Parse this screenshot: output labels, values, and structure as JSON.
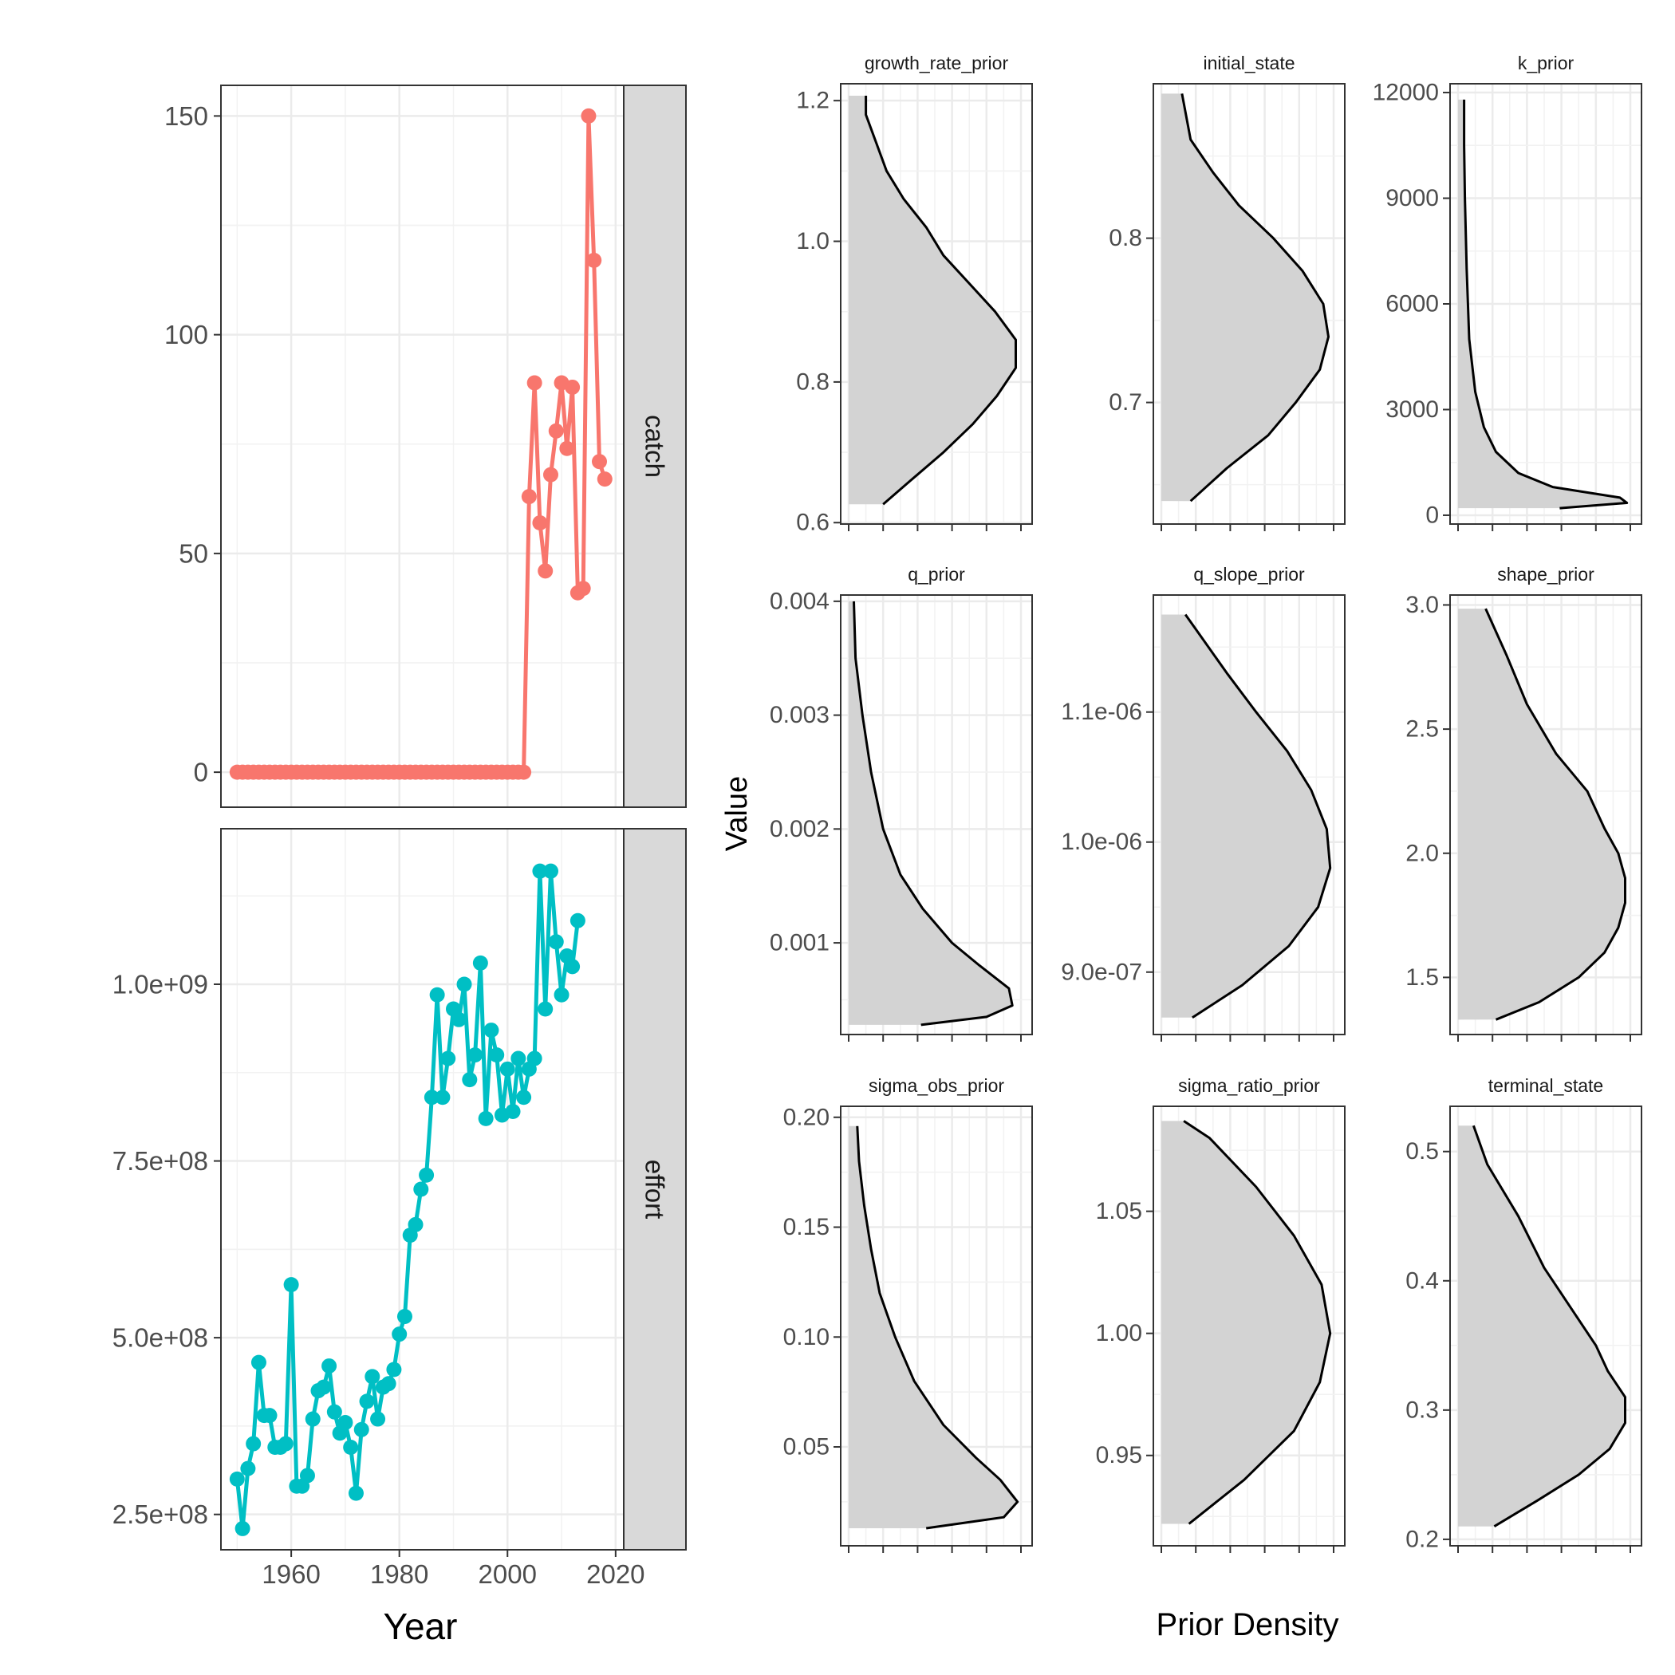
{
  "chart_data": [
    {
      "type": "line",
      "facet": "catch",
      "color": "#F8766D",
      "points": [
        [
          1950,
          0
        ],
        [
          1951,
          0
        ],
        [
          1952,
          0
        ],
        [
          1953,
          0
        ],
        [
          1954,
          0
        ],
        [
          1955,
          0
        ],
        [
          1956,
          0
        ],
        [
          1957,
          0
        ],
        [
          1958,
          0
        ],
        [
          1959,
          0
        ],
        [
          1960,
          0
        ],
        [
          1961,
          0
        ],
        [
          1962,
          0
        ],
        [
          1963,
          0
        ],
        [
          1964,
          0
        ],
        [
          1965,
          0
        ],
        [
          1966,
          0
        ],
        [
          1967,
          0
        ],
        [
          1968,
          0
        ],
        [
          1969,
          0
        ],
        [
          1970,
          0
        ],
        [
          1971,
          0
        ],
        [
          1972,
          0
        ],
        [
          1973,
          0
        ],
        [
          1974,
          0
        ],
        [
          1975,
          0
        ],
        [
          1976,
          0
        ],
        [
          1977,
          0
        ],
        [
          1978,
          0
        ],
        [
          1979,
          0
        ],
        [
          1980,
          0
        ],
        [
          1981,
          0
        ],
        [
          1982,
          0
        ],
        [
          1983,
          0
        ],
        [
          1984,
          0
        ],
        [
          1985,
          0
        ],
        [
          1986,
          0
        ],
        [
          1987,
          0
        ],
        [
          1988,
          0
        ],
        [
          1989,
          0
        ],
        [
          1990,
          0
        ],
        [
          1991,
          0
        ],
        [
          1992,
          0
        ],
        [
          1993,
          0
        ],
        [
          1994,
          0
        ],
        [
          1995,
          0
        ],
        [
          1996,
          0
        ],
        [
          1997,
          0
        ],
        [
          1998,
          0
        ],
        [
          1999,
          0
        ],
        [
          2000,
          0
        ],
        [
          2001,
          0
        ],
        [
          2002,
          0
        ],
        [
          2003,
          0
        ],
        [
          2004,
          63
        ],
        [
          2005,
          89
        ],
        [
          2006,
          57
        ],
        [
          2007,
          46
        ],
        [
          2008,
          68
        ],
        [
          2009,
          78
        ],
        [
          2010,
          89
        ],
        [
          2011,
          74
        ],
        [
          2012,
          88
        ],
        [
          2013,
          41
        ],
        [
          2014,
          42
        ],
        [
          2015,
          150
        ],
        [
          2016,
          117
        ],
        [
          2017,
          71
        ],
        [
          2018,
          67
        ]
      ],
      "ylim": [
        -8,
        157
      ],
      "y_ticks": [
        0,
        50,
        100,
        150
      ],
      "y_tick_labels": [
        "0",
        "50",
        "100",
        "150"
      ]
    },
    {
      "type": "line",
      "facet": "effort",
      "color": "#00BFC4",
      "points": [
        [
          1950,
          300000000
        ],
        [
          1951,
          230000000
        ],
        [
          1952,
          315000000
        ],
        [
          1953,
          350000000
        ],
        [
          1954,
          465000000
        ],
        [
          1955,
          390000000
        ],
        [
          1956,
          390000000
        ],
        [
          1957,
          345000000
        ],
        [
          1958,
          345000000
        ],
        [
          1959,
          350000000
        ],
        [
          1960,
          575000000
        ],
        [
          1961,
          290000000
        ],
        [
          1962,
          290000000
        ],
        [
          1963,
          305000000
        ],
        [
          1964,
          385000000
        ],
        [
          1965,
          425000000
        ],
        [
          1966,
          430000000
        ],
        [
          1967,
          460000000
        ],
        [
          1968,
          395000000
        ],
        [
          1969,
          365000000
        ],
        [
          1970,
          380000000
        ],
        [
          1971,
          345000000
        ],
        [
          1972,
          280000000
        ],
        [
          1973,
          370000000
        ],
        [
          1974,
          410000000
        ],
        [
          1975,
          445000000
        ],
        [
          1976,
          385000000
        ],
        [
          1977,
          430000000
        ],
        [
          1978,
          435000000
        ],
        [
          1979,
          455000000
        ],
        [
          1980,
          505000000
        ],
        [
          1981,
          530000000
        ],
        [
          1982,
          645000000
        ],
        [
          1983,
          660000000
        ],
        [
          1984,
          710000000
        ],
        [
          1985,
          730000000
        ],
        [
          1986,
          840000000
        ],
        [
          1987,
          985000000
        ],
        [
          1988,
          840000000
        ],
        [
          1989,
          895000000
        ],
        [
          1990,
          965000000
        ],
        [
          1991,
          950000000
        ],
        [
          1992,
          1000000000
        ],
        [
          1993,
          865000000
        ],
        [
          1994,
          900000000
        ],
        [
          1995,
          1030000000
        ],
        [
          1996,
          810000000
        ],
        [
          1997,
          935000000
        ],
        [
          1998,
          900000000
        ],
        [
          1999,
          815000000
        ],
        [
          2000,
          880000000
        ],
        [
          2001,
          820000000
        ],
        [
          2002,
          895000000
        ],
        [
          2003,
          840000000
        ],
        [
          2004,
          880000000
        ],
        [
          2005,
          895000000
        ],
        [
          2006,
          1160000000
        ],
        [
          2007,
          965000000
        ],
        [
          2008,
          1160000000
        ],
        [
          2009,
          1060000000
        ],
        [
          2010,
          985000000
        ],
        [
          2011,
          1040000000
        ],
        [
          2012,
          1025000000
        ],
        [
          2013,
          1090000000
        ]
      ],
      "ylim": [
        200000000,
        1220000000
      ],
      "y_ticks": [
        250000000,
        500000000,
        750000000,
        1000000000
      ],
      "y_tick_labels": [
        "2.5e+08",
        "5.0e+08",
        "7.5e+08",
        "1.0e+09"
      ]
    }
  ],
  "line_panel": {
    "x_label": "Year",
    "xlim": [
      1947,
      2021.5
    ],
    "x_ticks": [
      1960,
      1980,
      2000,
      2020
    ],
    "x_tick_labels": [
      "1960",
      "1980",
      "2000",
      "2020"
    ],
    "strip_labels": [
      "catch",
      "effort"
    ]
  },
  "density_panel": {
    "x_label": "Prior Density",
    "y_label": "Value",
    "fill_color": "#D3D3D3",
    "facets": [
      {
        "title": "growth_rate_prior",
        "ylim": [
          0.598,
          1.224
        ],
        "ticks": [
          0.6,
          0.8,
          1.0,
          1.2
        ],
        "tick_labels": [
          "0.6",
          "0.8",
          "1.0",
          "1.2"
        ],
        "density": [
          [
            0.626,
            0.2
          ],
          [
            0.66,
            0.36
          ],
          [
            0.7,
            0.55
          ],
          [
            0.74,
            0.72
          ],
          [
            0.78,
            0.86
          ],
          [
            0.82,
            0.97
          ],
          [
            0.86,
            0.97
          ],
          [
            0.9,
            0.85
          ],
          [
            0.94,
            0.7
          ],
          [
            0.98,
            0.55
          ],
          [
            1.02,
            0.45
          ],
          [
            1.06,
            0.32
          ],
          [
            1.1,
            0.22
          ],
          [
            1.14,
            0.16
          ],
          [
            1.18,
            0.1
          ],
          [
            1.207,
            0.1
          ]
        ]
      },
      {
        "title": "initial_state",
        "ylim": [
          0.626,
          0.894
        ],
        "ticks": [
          0.7,
          0.8
        ],
        "tick_labels": [
          "0.7",
          "0.8"
        ],
        "density": [
          [
            0.64,
            0.17
          ],
          [
            0.66,
            0.38
          ],
          [
            0.68,
            0.62
          ],
          [
            0.7,
            0.78
          ],
          [
            0.72,
            0.92
          ],
          [
            0.74,
            0.97
          ],
          [
            0.76,
            0.94
          ],
          [
            0.78,
            0.82
          ],
          [
            0.8,
            0.65
          ],
          [
            0.82,
            0.45
          ],
          [
            0.84,
            0.3
          ],
          [
            0.86,
            0.17
          ],
          [
            0.888,
            0.12
          ]
        ]
      },
      {
        "title": "k_prior",
        "ylim": [
          -250,
          12250
        ],
        "ticks": [
          0,
          3000,
          6000,
          9000,
          12000
        ],
        "tick_labels": [
          "0",
          "3000",
          "6000",
          "9000",
          "12000"
        ],
        "density": [
          [
            200,
            0.59
          ],
          [
            350,
            0.98
          ],
          [
            500,
            0.94
          ],
          [
            800,
            0.55
          ],
          [
            1200,
            0.35
          ],
          [
            1800,
            0.22
          ],
          [
            2500,
            0.15
          ],
          [
            3500,
            0.1
          ],
          [
            5000,
            0.065
          ],
          [
            7000,
            0.05
          ],
          [
            9000,
            0.04
          ],
          [
            10500,
            0.035
          ],
          [
            11800,
            0.035
          ]
        ]
      },
      {
        "title": "q_prior",
        "ylim": [
          0.000195,
          0.004055
        ],
        "ticks": [
          0.001,
          0.002,
          0.003,
          0.004
        ],
        "tick_labels": [
          "0.001",
          "0.002",
          "0.003",
          "0.004"
        ],
        "density": [
          [
            0.00028,
            0.42
          ],
          [
            0.00035,
            0.8
          ],
          [
            0.00045,
            0.95
          ],
          [
            0.0006,
            0.93
          ],
          [
            0.0008,
            0.76
          ],
          [
            0.001,
            0.6
          ],
          [
            0.0013,
            0.43
          ],
          [
            0.0016,
            0.3
          ],
          [
            0.002,
            0.2
          ],
          [
            0.0025,
            0.13
          ],
          [
            0.003,
            0.08
          ],
          [
            0.0035,
            0.04
          ],
          [
            0.004,
            0.03
          ]
        ]
      },
      {
        "title": "q_slope_prior",
        "ylim": [
          8.52e-07,
          1.19e-06
        ],
        "ticks": [
          9e-07,
          1e-06,
          1.1e-06
        ],
        "tick_labels": [
          "9.0e-07",
          "1.0e-06",
          "1.1e-06"
        ],
        "density": [
          [
            8.65e-07,
            0.18
          ],
          [
            8.9e-07,
            0.47
          ],
          [
            9.2e-07,
            0.74
          ],
          [
            9.5e-07,
            0.91
          ],
          [
            9.8e-07,
            0.98
          ],
          [
            1.01e-06,
            0.96
          ],
          [
            1.04e-06,
            0.87
          ],
          [
            1.07e-06,
            0.73
          ],
          [
            1.1e-06,
            0.55
          ],
          [
            1.13e-06,
            0.38
          ],
          [
            1.16e-06,
            0.22
          ],
          [
            1.175e-06,
            0.14
          ]
        ]
      },
      {
        "title": "shape_prior",
        "ylim": [
          1.27,
          3.04
        ],
        "ticks": [
          1.5,
          2.0,
          2.5,
          3.0
        ],
        "tick_labels": [
          "1.5",
          "2.0",
          "2.5",
          "3.0"
        ],
        "density": [
          [
            1.33,
            0.22
          ],
          [
            1.4,
            0.47
          ],
          [
            1.5,
            0.7
          ],
          [
            1.6,
            0.85
          ],
          [
            1.7,
            0.93
          ],
          [
            1.8,
            0.97
          ],
          [
            1.9,
            0.97
          ],
          [
            2.0,
            0.93
          ],
          [
            2.1,
            0.85
          ],
          [
            2.25,
            0.75
          ],
          [
            2.4,
            0.57
          ],
          [
            2.6,
            0.4
          ],
          [
            2.8,
            0.28
          ],
          [
            2.985,
            0.16
          ]
        ]
      },
      {
        "title": "sigma_obs_prior",
        "ylim": [
          0.005,
          0.205
        ],
        "ticks": [
          0.05,
          0.1,
          0.15,
          0.2
        ],
        "tick_labels": [
          "0.05",
          "0.10",
          "0.15",
          "0.20"
        ],
        "density": [
          [
            0.013,
            0.45
          ],
          [
            0.018,
            0.9
          ],
          [
            0.025,
            0.98
          ],
          [
            0.035,
            0.88
          ],
          [
            0.045,
            0.74
          ],
          [
            0.06,
            0.55
          ],
          [
            0.08,
            0.38
          ],
          [
            0.1,
            0.27
          ],
          [
            0.12,
            0.18
          ],
          [
            0.14,
            0.13
          ],
          [
            0.16,
            0.09
          ],
          [
            0.18,
            0.06
          ],
          [
            0.196,
            0.05
          ]
        ]
      },
      {
        "title": "sigma_ratio_prior",
        "ylim": [
          0.913,
          1.093
        ],
        "ticks": [
          0.95,
          1.0,
          1.05
        ],
        "tick_labels": [
          "0.95",
          "1.00",
          "1.05"
        ],
        "density": [
          [
            0.922,
            0.16
          ],
          [
            0.94,
            0.48
          ],
          [
            0.96,
            0.77
          ],
          [
            0.98,
            0.92
          ],
          [
            1.0,
            0.98
          ],
          [
            1.02,
            0.93
          ],
          [
            1.04,
            0.77
          ],
          [
            1.06,
            0.55
          ],
          [
            1.08,
            0.28
          ],
          [
            1.087,
            0.13
          ]
        ]
      },
      {
        "title": "terminal_state",
        "ylim": [
          0.195,
          0.535
        ],
        "ticks": [
          0.2,
          0.3,
          0.4,
          0.5
        ],
        "tick_labels": [
          "0.2",
          "0.3",
          "0.4",
          "0.5"
        ],
        "density": [
          [
            0.21,
            0.21
          ],
          [
            0.23,
            0.46
          ],
          [
            0.25,
            0.7
          ],
          [
            0.27,
            0.88
          ],
          [
            0.29,
            0.97
          ],
          [
            0.31,
            0.97
          ],
          [
            0.33,
            0.87
          ],
          [
            0.35,
            0.8
          ],
          [
            0.38,
            0.65
          ],
          [
            0.41,
            0.5
          ],
          [
            0.45,
            0.35
          ],
          [
            0.49,
            0.17
          ],
          [
            0.52,
            0.09
          ]
        ]
      }
    ]
  }
}
